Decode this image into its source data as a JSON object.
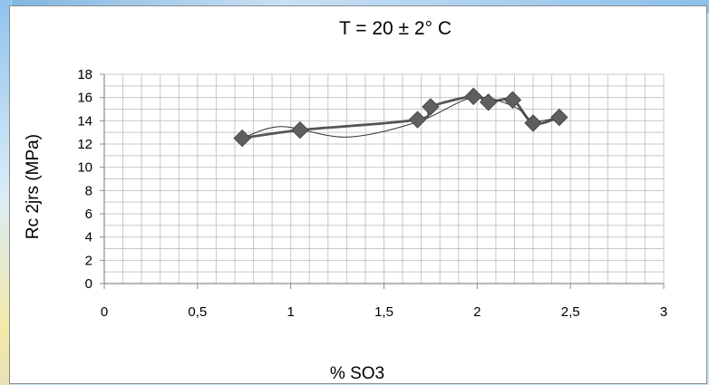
{
  "chart_data": {
    "type": "scatter",
    "title": "T = 20 ± 2° C",
    "xlabel": "% SO3",
    "ylabel": "Rc  2jrs (MPa)",
    "xlim": [
      0,
      3
    ],
    "ylim": [
      0,
      18
    ],
    "x_ticks": [
      0,
      0.5,
      1,
      1.5,
      2,
      2.5,
      3
    ],
    "x_tick_labels": [
      "0",
      "0,5",
      "1",
      "1,5",
      "2",
      "2,5",
      "3"
    ],
    "y_ticks": [
      0,
      2,
      4,
      6,
      8,
      10,
      12,
      14,
      16,
      18
    ],
    "y_tick_labels": [
      "0",
      "2",
      "4",
      "6",
      "8",
      "10",
      "12",
      "14",
      "16",
      "18"
    ],
    "grid": true,
    "legend": "none",
    "series": [
      {
        "marker": "diamond",
        "x": [
          0.74,
          1.05,
          1.68,
          1.75,
          1.98,
          2.06,
          2.19,
          2.3,
          2.44
        ],
        "y": [
          12.5,
          13.2,
          14.1,
          15.2,
          16.1,
          15.6,
          15.8,
          13.8,
          14.3
        ]
      }
    ],
    "colors": {
      "marker": "#5f5f5f",
      "line": "#555555",
      "grid": "#c8c8c8",
      "axis": "#8c8c8c"
    }
  }
}
